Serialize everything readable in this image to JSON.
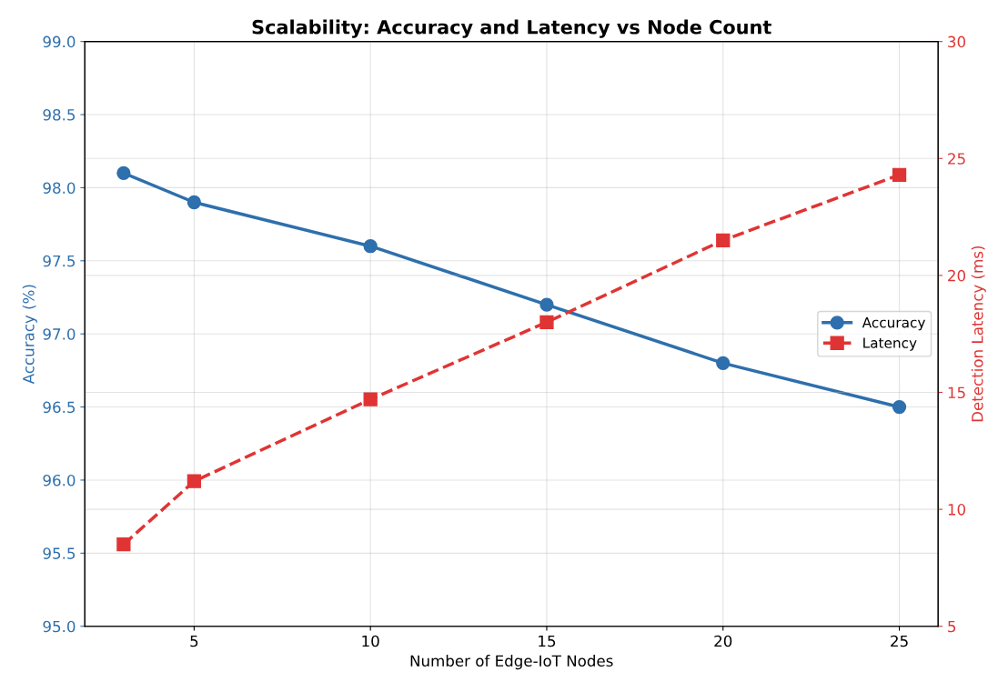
{
  "chart_data": {
    "type": "line",
    "title": "Scalability: Accuracy and Latency vs Node Count",
    "xlabel": "Number of Edge-IoT Nodes",
    "ylabel": "Accuracy (%)",
    "y2label": "Detection Latency (ms)",
    "x": [
      3,
      5,
      10,
      15,
      20,
      25
    ],
    "series": [
      {
        "name": "Accuracy",
        "color": "#2e6fad",
        "values": [
          98.1,
          97.9,
          97.6,
          97.2,
          96.8,
          96.5
        ],
        "marker": "circle",
        "line_style": "solid"
      },
      {
        "name": "Latency",
        "color": "#e03434",
        "values": [
          8.5,
          11.2,
          14.7,
          18.0,
          21.5,
          24.3
        ],
        "axis": "y2",
        "marker": "square",
        "line_style": "dashed"
      }
    ],
    "xlim": [
      1.9,
      26.1
    ],
    "xticks": [
      5,
      10,
      15,
      20,
      25
    ],
    "ylim": [
      95.0,
      99.0
    ],
    "yticks": [
      {
        "value": 95.0,
        "label": "95.0"
      },
      {
        "value": 95.5,
        "label": "95.5"
      },
      {
        "value": 96.0,
        "label": "96.0"
      },
      {
        "value": 96.5,
        "label": "96.5"
      },
      {
        "value": 97.0,
        "label": "97.0"
      },
      {
        "value": 97.5,
        "label": "97.5"
      },
      {
        "value": 98.0,
        "label": "98.0"
      },
      {
        "value": 98.5,
        "label": "98.5"
      },
      {
        "value": 99.0,
        "label": "99.0"
      }
    ],
    "y2lim": [
      5,
      30
    ],
    "y2ticks": [
      5,
      10,
      15,
      20,
      25,
      30
    ],
    "grid": true,
    "legend": "center right"
  }
}
